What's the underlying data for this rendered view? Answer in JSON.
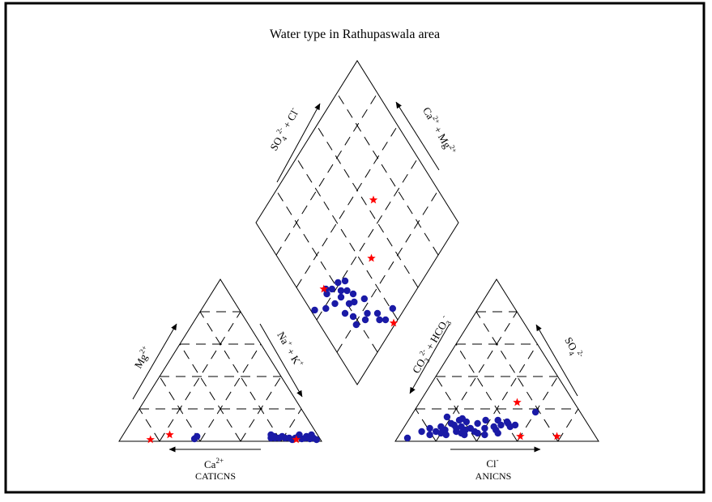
{
  "chart_data": {
    "type": "scatter",
    "subtype": "piper-diagram",
    "title": "Water type in Rathupaswala area",
    "cation_triangle": {
      "axis_labels": {
        "bottom": "Ca",
        "bottom_sup": "2+",
        "left": "Mg",
        "left_sup": "2+",
        "right": "Na",
        "right_sup1": "+",
        "right_mid": " + K",
        "right_sup2": "+"
      },
      "caption": "CATICNS",
      "series": [
        {
          "marker": "circle",
          "color": "#1a1aa6",
          "points": [
            {
              "ca": 62,
              "mg": 1.5
            },
            {
              "ca": 60,
              "mg": 3
            },
            {
              "ca": 24,
              "mg": 2
            },
            {
              "ca": 23,
              "mg": 4
            },
            {
              "ca": 22,
              "mg": 2
            },
            {
              "ca": 22,
              "mg": 3
            },
            {
              "ca": 20,
              "mg": 2
            },
            {
              "ca": 18,
              "mg": 3
            },
            {
              "ca": 17,
              "mg": 2
            },
            {
              "ca": 15,
              "mg": 2
            },
            {
              "ca": 14,
              "mg": 1
            },
            {
              "ca": 12,
              "mg": 2
            },
            {
              "ca": 10,
              "mg": 3
            },
            {
              "ca": 9,
              "mg": 1.5
            },
            {
              "ca": 9,
              "mg": 4
            },
            {
              "ca": 7,
              "mg": 2
            },
            {
              "ca": 6,
              "mg": 3
            },
            {
              "ca": 5,
              "mg": 1.5
            },
            {
              "ca": 3,
              "mg": 2
            },
            {
              "ca": 3,
              "mg": 4
            },
            {
              "ca": 2,
              "mg": 1
            }
          ]
        },
        {
          "marker": "star",
          "color": "#ff0000",
          "points": [
            {
              "ca": 84,
              "mg": 1
            },
            {
              "ca": 73,
              "mg": 4
            },
            {
              "ca": 12,
              "mg": 1
            }
          ]
        }
      ]
    },
    "anion_triangle": {
      "axis_labels": {
        "bottom": "Cl",
        "bottom_sup": "-",
        "left": "CO",
        "left_sub1": "3",
        "left_sup1": "2-",
        "left_mid": " + HCO",
        "left_sub2": "3",
        "left_sup2": "-",
        "right": "SO",
        "right_sub": "4",
        "right_sup": "2-"
      },
      "caption": "ANICNS",
      "series": [
        {
          "marker": "circle",
          "color": "#1a1aa6",
          "points": [
            {
              "cl": 5,
              "so4": 2
            },
            {
              "cl": 10,
              "so4": 6
            },
            {
              "cl": 13,
              "so4": 8
            },
            {
              "cl": 15,
              "so4": 4
            },
            {
              "cl": 17,
              "so4": 6
            },
            {
              "cl": 18,
              "so4": 9
            },
            {
              "cl": 20,
              "so4": 5
            },
            {
              "cl": 21,
              "so4": 7
            },
            {
              "cl": 23,
              "so4": 4
            },
            {
              "cl": 24,
              "so4": 10
            },
            {
              "cl": 25,
              "so4": 13
            },
            {
              "cl": 26,
              "so4": 8
            },
            {
              "cl": 27,
              "so4": 6
            },
            {
              "cl": 28,
              "so4": 9
            },
            {
              "cl": 29,
              "so4": 12
            },
            {
              "cl": 30,
              "so4": 5
            },
            {
              "cl": 31,
              "so4": 7
            },
            {
              "cl": 32,
              "so4": 4
            },
            {
              "cl": 33,
              "so4": 8
            },
            {
              "cl": 36,
              "so4": 6
            },
            {
              "cl": 38,
              "so4": 5
            },
            {
              "cl": 40,
              "so4": 8
            },
            {
              "cl": 42,
              "so4": 4
            },
            {
              "cl": 44,
              "so4": 9
            },
            {
              "cl": 46,
              "so4": 7
            },
            {
              "cl": 47,
              "so4": 10
            },
            {
              "cl": 48,
              "so4": 5
            },
            {
              "cl": 50,
              "so4": 11
            },
            {
              "cl": 18,
              "so4": 15
            },
            {
              "cl": 22,
              "so4": 11
            },
            {
              "cl": 26,
              "so4": 14
            },
            {
              "cl": 38,
              "so4": 13
            },
            {
              "cl": 44,
              "so4": 13
            },
            {
              "cl": 49,
              "so4": 12
            },
            {
              "cl": 54,
              "so4": 10
            },
            {
              "cl": 60,
              "so4": 18
            },
            {
              "cl": 52,
              "so4": 9
            },
            {
              "cl": 35,
              "so4": 11
            }
          ]
        },
        {
          "marker": "star",
          "color": "#ff0000",
          "points": [
            {
              "cl": 48,
              "so4": 24
            },
            {
              "cl": 78,
              "so4": 3
            },
            {
              "cl": 60,
              "so4": 3
            }
          ]
        }
      ]
    },
    "diamond": {
      "axis_labels": {
        "left": "SO",
        "left_sub": "4",
        "left_sup": "2-",
        "left_mid": " + Cl",
        "left_sup2": "-",
        "right": "Ca",
        "right_sup": "2+",
        "right_mid": " + Mg",
        "right_sup2": "2+"
      },
      "series": [
        {
          "marker": "circle",
          "color": "#1a1aa6",
          "points": [
            {
              "so4cl": 34,
              "camg": 6
            },
            {
              "so4cl": 32,
              "camg": 12
            },
            {
              "so4cl": 41,
              "camg": 6
            },
            {
              "so4cl": 31,
              "camg": 9
            },
            {
              "so4cl": 18,
              "camg": 19
            },
            {
              "so4cl": 30,
              "camg": 23
            },
            {
              "so4cl": 24,
              "camg": 16
            },
            {
              "so4cl": 27,
              "camg": 17
            },
            {
              "so4cl": 19,
              "camg": 23
            },
            {
              "so4cl": 16,
              "camg": 28
            },
            {
              "so4cl": 21,
              "camg": 29
            },
            {
              "so4cl": 24,
              "camg": 27
            },
            {
              "so4cl": 26,
              "camg": 30
            },
            {
              "so4cl": 24,
              "camg": 34
            },
            {
              "so4cl": 26,
              "camg": 38
            },
            {
              "so4cl": 19,
              "camg": 35
            },
            {
              "so4cl": 21,
              "camg": 37
            },
            {
              "so4cl": 22,
              "camg": 41
            },
            {
              "so4cl": 14,
              "camg": 36
            },
            {
              "so4cl": 17,
              "camg": 42
            },
            {
              "so4cl": 14,
              "camg": 45
            },
            {
              "so4cl": 13,
              "camg": 43
            },
            {
              "so4cl": 8,
              "camg": 39
            },
            {
              "so4cl": 2,
              "camg": 44
            }
          ]
        },
        {
          "marker": "star",
          "color": "#ff0000",
          "points": [
            {
              "so4cl": 65,
              "camg": 49
            },
            {
              "so4cl": 46,
              "camg": 32
            },
            {
              "so4cl": 37,
              "camg": 1
            },
            {
              "so4cl": 13,
              "camg": 46
            }
          ]
        }
      ]
    },
    "grid": true,
    "grid_style": "dashed",
    "legend": "none"
  }
}
